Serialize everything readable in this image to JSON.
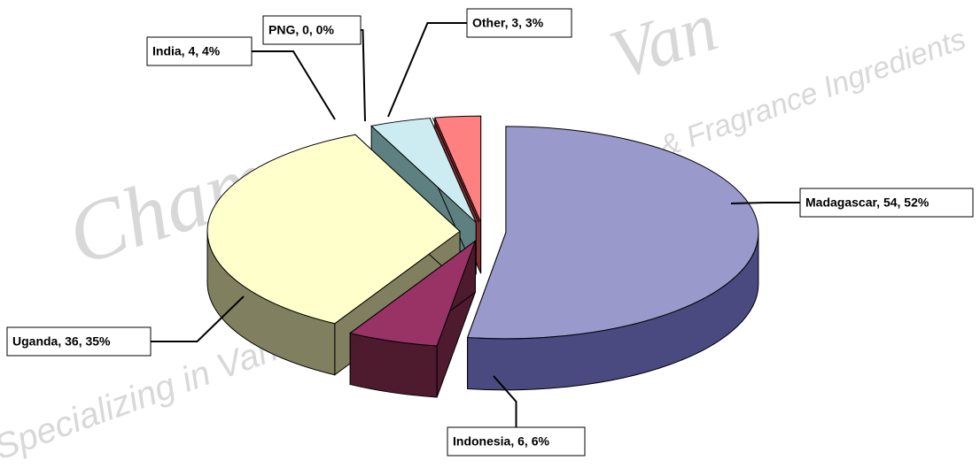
{
  "chart_data": {
    "type": "pie",
    "categories": [
      "Madagascar",
      "Indonesia",
      "Uganda",
      "India",
      "PNG",
      "Other"
    ],
    "values": [
      54,
      6,
      36,
      4,
      0,
      3
    ],
    "value_labels": [
      "Madagascar, 54, 52%",
      "Indonesia, 6, 6%",
      "Uganda, 36, 35%",
      "India, 4, 4%",
      "PNG, 0, 0%",
      "Other, 3, 3%"
    ],
    "colors": [
      "#9999cc",
      "#993366",
      "#ffffcc",
      "#ccecf2",
      "#cc3366",
      "#ff8080"
    ],
    "side_colors": [
      "#4a4a80",
      "#4d1a2e",
      "#808060",
      "#5f8080",
      "#66203a",
      "#803030"
    ],
    "watermark": [
      "Chamm",
      "Van",
      "Specializing in Vanilla Beans",
      "r & Fragrance Ingredients"
    ]
  }
}
